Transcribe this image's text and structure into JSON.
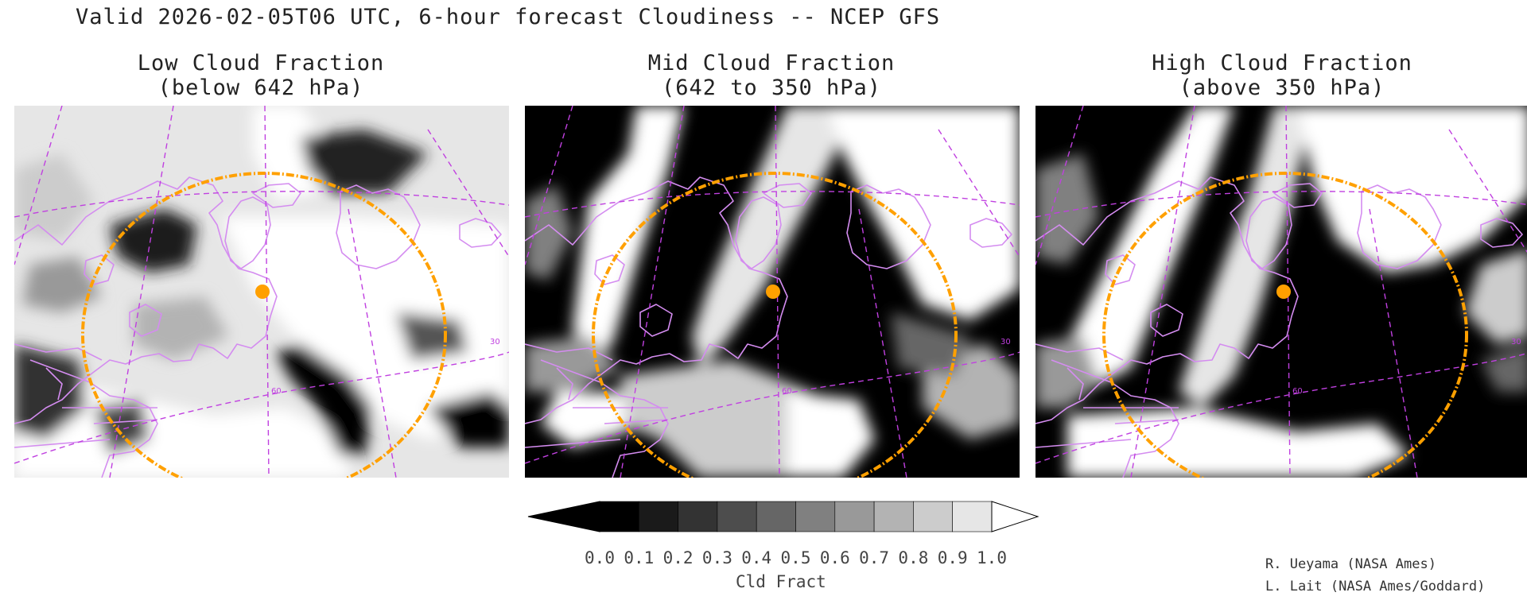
{
  "title": "Valid 2026-02-05T06 UTC, 6-hour forecast Cloudiness -- NCEP GFS",
  "panels": [
    {
      "line1": "Low Cloud Fraction",
      "line2": "(below 642 hPa)",
      "theme": "low"
    },
    {
      "line1": "Mid Cloud Fraction",
      "line2": "(642 to 350 hPa)",
      "theme": "mid"
    },
    {
      "line1": "High Cloud Fraction",
      "line2": "(above 350 hPa)",
      "theme": "high"
    }
  ],
  "map_labels": {
    "lat": "60",
    "lon": "30"
  },
  "colorbar": {
    "ticks": [
      "0.0",
      "0.1",
      "0.2",
      "0.3",
      "0.4",
      "0.5",
      "0.6",
      "0.7",
      "0.8",
      "0.9",
      "1.0"
    ],
    "label": "Cld Fract",
    "shades": [
      "#000000",
      "#1a1a1a",
      "#333333",
      "#4d4d4d",
      "#666666",
      "#808080",
      "#999999",
      "#b3b3b3",
      "#cccccc",
      "#e6e6e6"
    ],
    "under_color": "#000000",
    "over_color": "#ffffff"
  },
  "credits": [
    "R. Ueyama (NASA Ames)",
    "L. Lait (NASA Ames/Goddard)"
  ],
  "colors": {
    "coastline": "#d48cf0",
    "range_ring": "#ffa000",
    "marker": "#ffa000",
    "grid": "#c040e0"
  }
}
